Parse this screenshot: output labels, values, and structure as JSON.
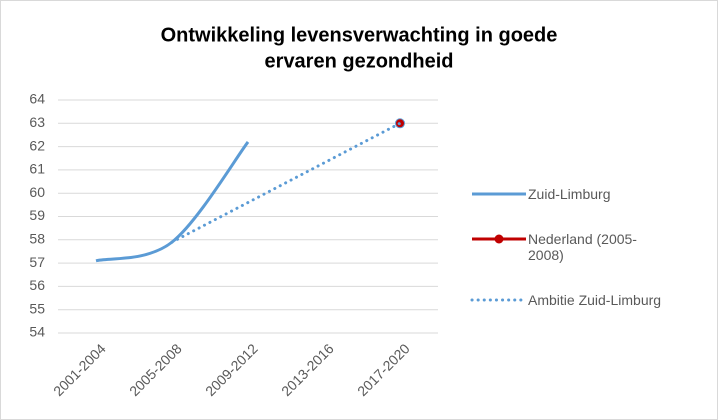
{
  "chart_data": {
    "type": "line",
    "title": [
      "Ontwikkeling  levensverwachting in goede",
      "ervaren gezondheid"
    ],
    "categories": [
      "2001-2004",
      "2005-2008",
      "2009-2012",
      "2013-2016",
      "2017-2020"
    ],
    "series": [
      {
        "name": "Zuid-Limburg",
        "color": "#5b9bd5",
        "style": "smooth",
        "values": [
          57.1,
          57.9,
          62.2,
          null,
          null
        ]
      },
      {
        "name": "Nederland (2005-2008)",
        "color": "#c00000",
        "style": "marker",
        "values": [
          null,
          null,
          null,
          null,
          63
        ]
      },
      {
        "name": "Ambitie Zuid-Limburg",
        "color": "#5b9bd5",
        "style": "dotted",
        "values": [
          null,
          57.9,
          59.6,
          61.3,
          63
        ]
      }
    ],
    "ylim": [
      54,
      64
    ],
    "yticks": [
      54,
      55,
      56,
      57,
      58,
      59,
      60,
      61,
      62,
      63,
      64
    ],
    "grid": true
  }
}
